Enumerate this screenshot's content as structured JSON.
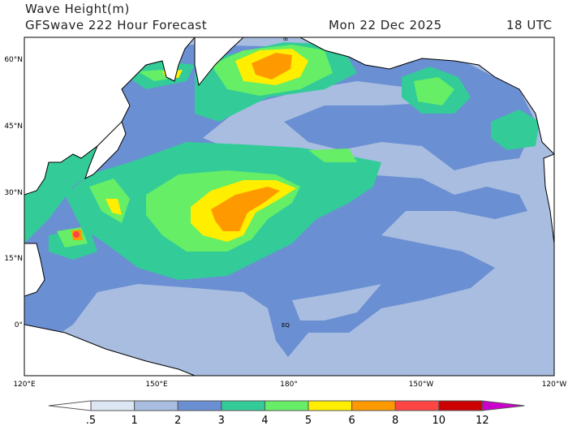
{
  "title": "Wave Height(m)",
  "subtitle": "GFSwave 222 Hour Forecast",
  "valid_date": "Mon 22 Dec 2025",
  "valid_time": "18 UTC",
  "lat_labels": [
    "60°N",
    "45°N",
    "30°N",
    "15°N",
    "0°"
  ],
  "lon_labels": [
    "120°E",
    "150°E",
    "180°",
    "150°W",
    "120°W"
  ],
  "map_labels": {
    "equator": "EQ",
    "north_pole": "IB"
  },
  "colorbar": {
    "ticks": [
      ".5",
      "1",
      "2",
      "3",
      "4",
      "5",
      "6",
      "8",
      "10",
      "12"
    ],
    "colors": [
      "#ffffff",
      "#dde6f3",
      "#a8bde0",
      "#6a8fd2",
      "#33cc99",
      "#66ee66",
      "#ffee00",
      "#ff9900",
      "#ff4444",
      "#cc0000",
      "#cc00cc"
    ]
  }
}
